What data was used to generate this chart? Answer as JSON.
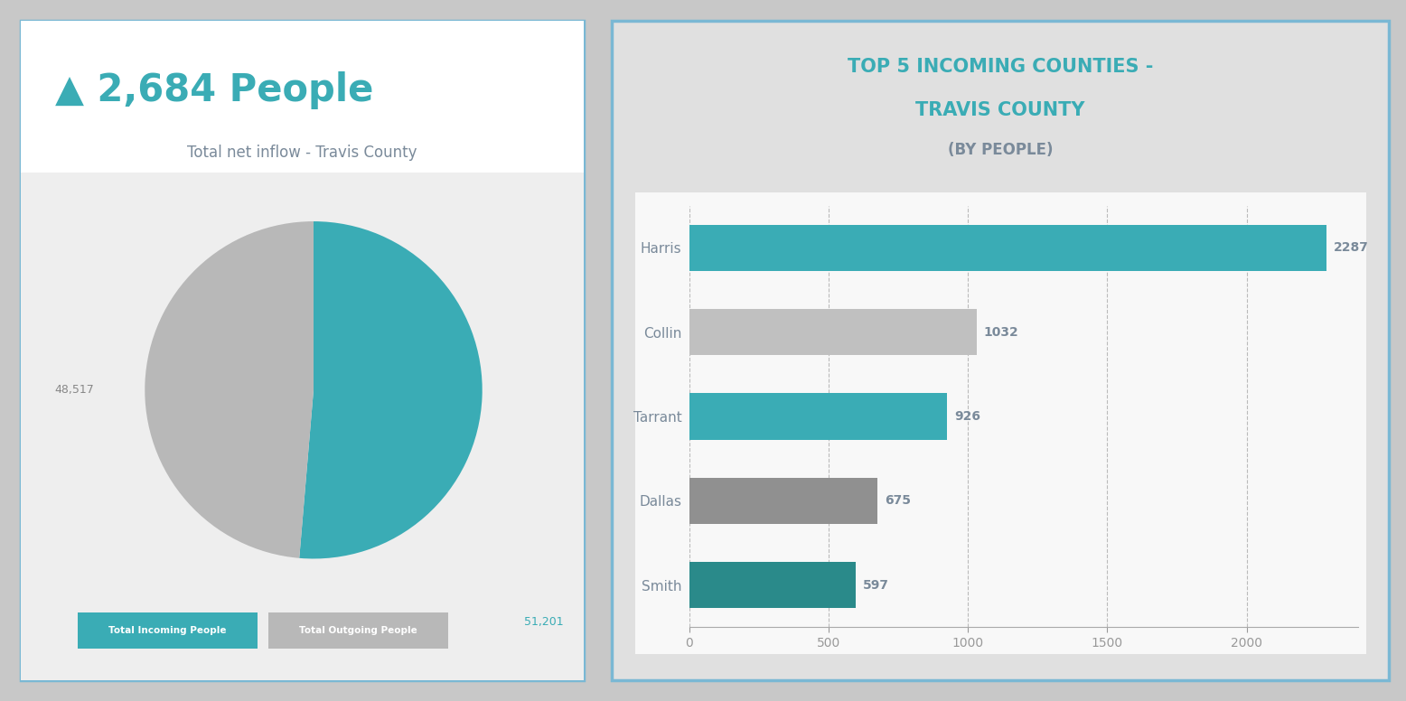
{
  "title_main": "▲ 2,684 People",
  "subtitle_main": "Total net inflow - Travis County",
  "pie_values": [
    51201,
    48517
  ],
  "pie_colors": [
    "#3aacb5",
    "#b8b8b8"
  ],
  "pie_labels": [
    "51,201",
    "48,517"
  ],
  "legend_labels": [
    "Total Incoming People",
    "Total Outgoing People"
  ],
  "bar_title_line1": "TOP 5 INCOMING COUNTIES -",
  "bar_title_line2": "TRAVIS COUNTY",
  "bar_title_line3": "(BY PEOPLE)",
  "bar_categories": [
    "Harris",
    "Collin",
    "Tarrant",
    "Dallas",
    "Smith"
  ],
  "bar_values": [
    2287,
    1032,
    926,
    675,
    597
  ],
  "bar_colors": [
    "#3aacb5",
    "#c0c0c0",
    "#3aacb5",
    "#909090",
    "#2a8a8a"
  ],
  "bar_value_labels": [
    "2287",
    "1032",
    "926",
    "675",
    "597"
  ],
  "bar_xlim": [
    0,
    2400
  ],
  "bar_xticks": [
    0,
    500,
    1000,
    1500,
    2000
  ],
  "teal_color": "#3aacb5",
  "gray_color": "#b8b8b8",
  "dark_teal": "#2a7f8a",
  "panel_bg_left": "#f5f5f5",
  "panel_bg_right": "#e0e0e0",
  "chart_bg_right": "#f8f8f8",
  "border_color": "#7ab8d4",
  "title_color": "#3aacb5",
  "subtitle_color": "#7a8a9a",
  "outer_bg": "#c8c8c8"
}
